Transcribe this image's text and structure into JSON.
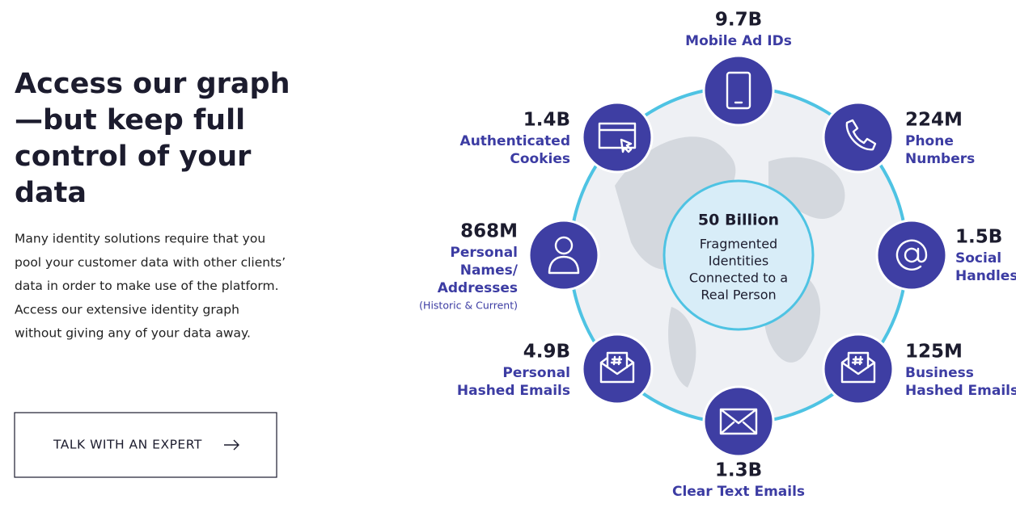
{
  "heading": [
    "Access our graph",
    "—but keep full",
    "control of your",
    "data"
  ],
  "paragraph": [
    "Many identity solutions require that you",
    "pool your customer data with other clients’",
    "data in order to make use of the platform.",
    "Access our extensive identity graph",
    "without giving any of your data away."
  ],
  "button": "TALK WITH AN EXPERT",
  "center": {
    "value": "50 Billion",
    "label": [
      "Fragmented",
      "Identities",
      "Connected to a",
      "Real Person"
    ]
  },
  "nodes": [
    {
      "value": "9.7B",
      "label": [
        "Mobile Ad IDs"
      ]
    },
    {
      "value": "224M",
      "label": [
        "Phone",
        "Numbers"
      ]
    },
    {
      "value": "1.5B",
      "label": [
        "Social",
        "Handles"
      ]
    },
    {
      "value": "125M",
      "label": [
        "Business",
        "Hashed Emails"
      ]
    },
    {
      "value": "1.3B",
      "label": [
        "Clear Text Emails"
      ]
    },
    {
      "value": "4.9B",
      "label": [
        "Personal",
        "Hashed Emails"
      ]
    },
    {
      "value": "868M",
      "label": [
        "Personal",
        "Names/",
        "Addresses"
      ],
      "note": "(Historic & Current)"
    },
    {
      "value": "1.4B",
      "label": [
        "Authenticated",
        "Cookies"
      ]
    }
  ]
}
